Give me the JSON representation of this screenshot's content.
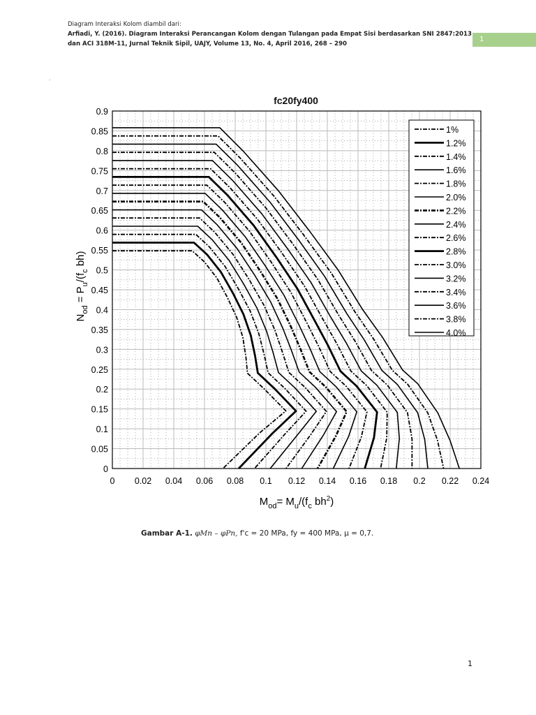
{
  "header": {
    "line1": "Diagram Interaksi Kolom diambil dari:",
    "line2": "Arfiadi, Y. (2016). Diagram Interaksi Perancangan Kolom dengan Tulangan pada Empat Sisi berdasarkan SNI 2847:2013",
    "line3": "dan ACI 318M-11, Jurnal Teknik Sipil, UAJY, Volume 13, No. 4, April 2016, 268 – 290",
    "tag": "1",
    "tag_color": "#a8d08d",
    "dot": "."
  },
  "caption": {
    "label": "Gambar A-1.",
    "formula": "φMn – φPn,",
    "fc": "f'c = 20 MPa,",
    "fy": "fy = 400 MPa,",
    "mu": "μ = 0,7."
  },
  "page_number": "1",
  "chart_data": {
    "type": "line",
    "title": "fc20fy400",
    "xlabel": "Mod = Mu/(f'c bh^2)",
    "ylabel": "Nod = Pu/(f'c bh)",
    "xlim": [
      0,
      0.24
    ],
    "ylim": [
      0,
      0.9
    ],
    "xticks": [
      "0",
      "0.02",
      "0.04",
      "0.06",
      "0.08",
      "0.1",
      "0.12",
      "0.14",
      "0.16",
      "0.18",
      "0.2",
      "0.22",
      "0.24"
    ],
    "yticks": [
      "0",
      "0.05",
      "0.1",
      "0.15",
      "0.2",
      "0.25",
      "0.3",
      "0.35",
      "0.4",
      "0.45",
      "0.5",
      "0.55",
      "0.6",
      "0.65",
      "0.7",
      "0.75",
      "0.8",
      "0.85",
      "0.9"
    ],
    "grid": true,
    "minor_grid": true,
    "legend_position": "upper right",
    "series": [
      {
        "name": "1%",
        "style": "dashdot",
        "t": 0.0
      },
      {
        "name": "1.2%",
        "style": "solid-thick",
        "t": 0.0667
      },
      {
        "name": "1.4%",
        "style": "dashdot",
        "t": 0.1333
      },
      {
        "name": "1.6%",
        "style": "solid",
        "t": 0.2
      },
      {
        "name": "1.8%",
        "style": "dashdot",
        "t": 0.2667
      },
      {
        "name": "2.0%",
        "style": "solid",
        "t": 0.3333
      },
      {
        "name": "2.2%",
        "style": "dashdot-thick",
        "t": 0.4
      },
      {
        "name": "2.4%",
        "style": "solid",
        "t": 0.4667
      },
      {
        "name": "2.6%",
        "style": "dashdot",
        "t": 0.5333
      },
      {
        "name": "2.8%",
        "style": "solid-thick",
        "t": 0.6
      },
      {
        "name": "3.0%",
        "style": "dashdot",
        "t": 0.6667
      },
      {
        "name": "3.2%",
        "style": "solid",
        "t": 0.7333
      },
      {
        "name": "3.4%",
        "style": "dashdot",
        "t": 0.8
      },
      {
        "name": "3.6%",
        "style": "solid",
        "t": 0.8667
      },
      {
        "name": "3.8%",
        "style": "dashdot",
        "t": 0.9333
      },
      {
        "name": "4.0%",
        "style": "solid",
        "t": 1.0
      }
    ],
    "curve_1pct": [
      [
        0,
        0.548
      ],
      [
        0.052,
        0.548
      ],
      [
        0.06,
        0.52
      ],
      [
        0.068,
        0.48
      ],
      [
        0.075,
        0.43
      ],
      [
        0.081,
        0.38
      ],
      [
        0.085,
        0.33
      ],
      [
        0.087,
        0.28
      ],
      [
        0.088,
        0.24
      ],
      [
        0.099,
        0.2
      ],
      [
        0.113,
        0.145
      ],
      [
        0.096,
        0.09
      ],
      [
        0.072,
        0
      ]
    ],
    "curve_4pct": [
      [
        0,
        0.858
      ],
      [
        0.07,
        0.858
      ],
      [
        0.085,
        0.8
      ],
      [
        0.108,
        0.7
      ],
      [
        0.128,
        0.6
      ],
      [
        0.147,
        0.5
      ],
      [
        0.163,
        0.4
      ],
      [
        0.176,
        0.33
      ],
      [
        0.189,
        0.248
      ],
      [
        0.199,
        0.213
      ],
      [
        0.212,
        0.14
      ],
      [
        0.22,
        0.07
      ],
      [
        0.226,
        0
      ]
    ]
  }
}
